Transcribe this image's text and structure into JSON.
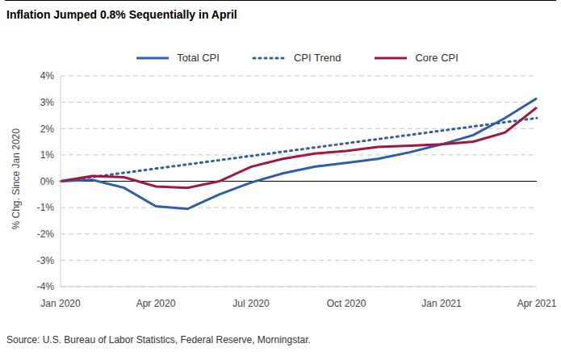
{
  "chart_data": {
    "type": "line",
    "title": "Inflation Jumped 0.8% Sequentially in April",
    "y_label": "% Chg. Since Jan 2020",
    "source": "Source: U.S. Bureau of Labor Statistics, Federal Reserve, Morningstar.",
    "categories": [
      "Jan 2020",
      null,
      null,
      "Apr 2020",
      null,
      null,
      "Jul 2020",
      null,
      null,
      "Oct 2020",
      null,
      null,
      "Jan 2021",
      null,
      null,
      "Apr 2021"
    ],
    "series": [
      {
        "name": "Total CPI",
        "color": "#2e5fa8",
        "line_style": "solid",
        "values": [
          0,
          0.05,
          -0.25,
          -0.95,
          -1.05,
          -0.5,
          -0.05,
          0.3,
          0.55,
          0.7,
          0.85,
          1.1,
          1.4,
          1.75,
          2.4,
          3.15
        ]
      },
      {
        "name": "CPI Trend",
        "color": "#2e5fa8",
        "line_style": "dotted",
        "values": [
          0,
          0.16,
          0.32,
          0.48,
          0.64,
          0.8,
          0.96,
          1.12,
          1.28,
          1.44,
          1.6,
          1.76,
          1.92,
          2.08,
          2.24,
          2.4
        ]
      },
      {
        "name": "Core CPI",
        "color": "#a3163f",
        "line_style": "solid",
        "values": [
          0,
          0.2,
          0.15,
          -0.2,
          -0.25,
          0.0,
          0.55,
          0.85,
          1.05,
          1.15,
          1.3,
          1.35,
          1.4,
          1.5,
          1.85,
          2.8
        ]
      }
    ],
    "ylim": [
      -4,
      4
    ],
    "yticks": [
      {
        "value": -4,
        "label": "-4%"
      },
      {
        "value": -3,
        "label": "-3%"
      },
      {
        "value": -2,
        "label": "-2%"
      },
      {
        "value": -1,
        "label": "-1%"
      },
      {
        "value": 0,
        "label": "0%"
      },
      {
        "value": 1,
        "label": "1%"
      },
      {
        "value": 2,
        "label": "2%"
      },
      {
        "value": 3,
        "label": "3%"
      },
      {
        "value": 4,
        "label": "4%"
      }
    ],
    "grid": true,
    "legend": "top"
  }
}
